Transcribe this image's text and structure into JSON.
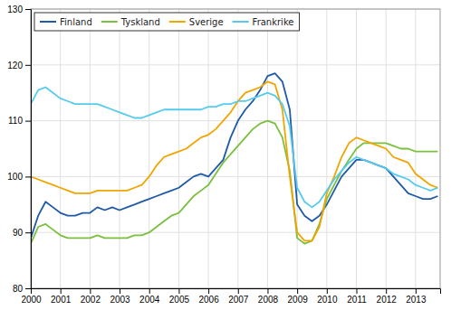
{
  "chart_data": {
    "type": "line",
    "x": [
      2000,
      2000.25,
      2000.5,
      2000.75,
      2001,
      2001.25,
      2001.5,
      2001.75,
      2002,
      2002.25,
      2002.5,
      2002.75,
      2003,
      2003.25,
      2003.5,
      2003.75,
      2004,
      2004.25,
      2004.5,
      2004.75,
      2005,
      2005.25,
      2005.5,
      2005.75,
      2006,
      2006.25,
      2006.5,
      2006.75,
      2007,
      2007.25,
      2007.5,
      2007.75,
      2008,
      2008.25,
      2008.5,
      2008.75,
      2009,
      2009.25,
      2009.5,
      2009.75,
      2010,
      2010.25,
      2010.5,
      2010.75,
      2011,
      2011.25,
      2011.5,
      2011.75,
      2012,
      2012.25,
      2012.5,
      2012.75,
      2013,
      2013.25,
      2013.5,
      2013.75
    ],
    "series": [
      {
        "name": "Finland",
        "color": "#1f5aa8",
        "values": [
          89.0,
          93.0,
          95.5,
          94.5,
          93.5,
          93.0,
          93.0,
          93.5,
          93.5,
          94.5,
          94.0,
          94.5,
          94.0,
          94.5,
          95.0,
          95.5,
          96.0,
          96.5,
          97.0,
          97.5,
          98.0,
          99.0,
          100.0,
          100.5,
          100.0,
          101.5,
          103.0,
          107.0,
          110.0,
          112.0,
          113.5,
          115.5,
          118.0,
          118.5,
          117.0,
          112.0,
          95.0,
          93.0,
          92.0,
          93.0,
          95.0,
          97.5,
          100.0,
          101.5,
          103.0,
          103.0,
          102.5,
          102.0,
          101.5,
          100.0,
          98.5,
          97.0,
          96.5,
          96.0,
          96.0,
          96.5
        ]
      },
      {
        "name": "Tyskland",
        "color": "#7bbf3e",
        "values": [
          88.0,
          91.0,
          91.5,
          90.5,
          89.5,
          89.0,
          89.0,
          89.0,
          89.0,
          89.5,
          89.0,
          89.0,
          89.0,
          89.0,
          89.5,
          89.5,
          90.0,
          91.0,
          92.0,
          93.0,
          93.5,
          95.0,
          96.5,
          97.5,
          98.5,
          100.5,
          102.5,
          104.0,
          105.5,
          107.0,
          108.5,
          109.5,
          110.0,
          109.5,
          107.0,
          101.0,
          89.0,
          88.0,
          88.5,
          91.5,
          96.0,
          98.5,
          101.0,
          103.0,
          105.0,
          106.0,
          106.0,
          106.0,
          106.0,
          105.5,
          105.0,
          105.0,
          104.5,
          104.5,
          104.5,
          104.5
        ]
      },
      {
        "name": "Sverige",
        "color": "#f0a500",
        "values": [
          100.0,
          99.5,
          99.0,
          98.5,
          98.0,
          97.5,
          97.0,
          97.0,
          97.0,
          97.5,
          97.5,
          97.5,
          97.5,
          97.5,
          98.0,
          98.5,
          100.0,
          102.0,
          103.5,
          104.0,
          104.5,
          105.0,
          106.0,
          107.0,
          107.5,
          108.5,
          110.0,
          111.5,
          113.5,
          115.0,
          115.5,
          116.0,
          117.0,
          116.5,
          112.0,
          100.0,
          90.0,
          88.5,
          88.5,
          91.0,
          97.0,
          100.0,
          103.5,
          106.0,
          107.0,
          106.5,
          106.0,
          105.5,
          105.0,
          103.5,
          103.0,
          102.5,
          100.5,
          99.5,
          98.5,
          98.0
        ]
      },
      {
        "name": "Frankrike",
        "color": "#55ccee",
        "values": [
          113.0,
          115.5,
          116.0,
          115.0,
          114.0,
          113.5,
          113.0,
          113.0,
          113.0,
          113.0,
          112.5,
          112.0,
          111.5,
          111.0,
          110.5,
          110.5,
          111.0,
          111.5,
          112.0,
          112.0,
          112.0,
          112.0,
          112.0,
          112.0,
          112.5,
          112.5,
          113.0,
          113.0,
          113.5,
          113.5,
          114.0,
          114.5,
          115.0,
          114.5,
          113.0,
          109.0,
          98.0,
          95.5,
          94.5,
          95.5,
          97.5,
          99.5,
          101.0,
          102.5,
          103.5,
          103.0,
          102.5,
          102.0,
          101.5,
          100.5,
          100.0,
          99.5,
          98.5,
          98.0,
          97.5,
          98.0
        ]
      }
    ],
    "xlim": [
      2000,
      2013.83
    ],
    "ylim": [
      80,
      130
    ],
    "xticks": [
      2000,
      2001,
      2002,
      2003,
      2004,
      2005,
      2006,
      2007,
      2008,
      2009,
      2010,
      2011,
      2012,
      2013
    ],
    "yticks": [
      80,
      90,
      100,
      110,
      120,
      130
    ],
    "grid": true,
    "legend": "top-left"
  }
}
